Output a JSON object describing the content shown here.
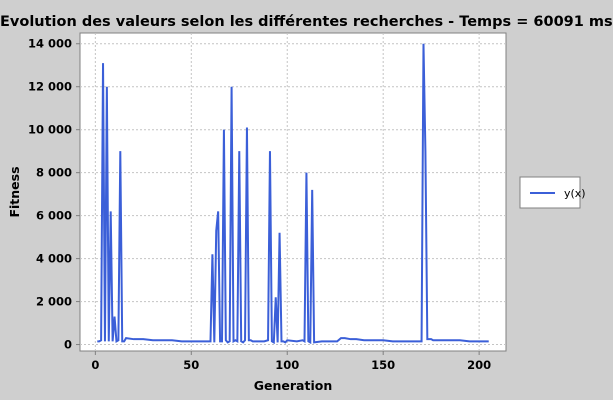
{
  "chart_data": {
    "type": "line",
    "title": "Evolution des valeurs selon les différentes recherches - Temps = 60091 ms",
    "xlabel": "Generation",
    "ylabel": "Fitness",
    "xlim": [
      -8,
      214
    ],
    "ylim": [
      -300,
      14500
    ],
    "xticks": [
      0,
      50,
      100,
      150,
      200
    ],
    "xtick_labels": [
      "0",
      "50",
      "100",
      "150",
      "200"
    ],
    "yticks": [
      0,
      2000,
      4000,
      6000,
      8000,
      10000,
      12000,
      14000
    ],
    "ytick_labels": [
      "0",
      "2 000",
      "4 000",
      "6 000",
      "8 000",
      "10 000",
      "12 000",
      "14 000"
    ],
    "grid": true,
    "legend_position": "right",
    "series": [
      {
        "name": "y(x)",
        "color": "#3b5fd8",
        "x": [
          1,
          2,
          3,
          4,
          5,
          6,
          7,
          8,
          9,
          10,
          11,
          12,
          13,
          14,
          15,
          16,
          20,
          25,
          30,
          35,
          40,
          45,
          50,
          55,
          58,
          60,
          61,
          62,
          63,
          64,
          65,
          66,
          67,
          68,
          69,
          70,
          71,
          72,
          73,
          74,
          75,
          76,
          77,
          78,
          79,
          80,
          81,
          82,
          85,
          88,
          90,
          91,
          92,
          93,
          94,
          95,
          96,
          97,
          98,
          99,
          100,
          105,
          108,
          109,
          110,
          111,
          112,
          113,
          114,
          118,
          122,
          126,
          128,
          130,
          133,
          136,
          140,
          145,
          150,
          155,
          160,
          165,
          168,
          170,
          171,
          172,
          173,
          174,
          175,
          176,
          180,
          185,
          190,
          195,
          200,
          205
        ],
        "y": [
          150,
          150,
          200,
          13100,
          150,
          12000,
          150,
          6200,
          150,
          1300,
          150,
          200,
          9000,
          150,
          150,
          300,
          250,
          250,
          200,
          200,
          200,
          150,
          150,
          150,
          150,
          150,
          4200,
          100,
          5300,
          6200,
          150,
          150,
          10000,
          200,
          100,
          150,
          12000,
          150,
          200,
          150,
          9000,
          150,
          100,
          200,
          10100,
          200,
          200,
          150,
          150,
          150,
          200,
          9000,
          150,
          100,
          2200,
          100,
          5200,
          150,
          150,
          100,
          200,
          150,
          200,
          150,
          8000,
          150,
          100,
          7200,
          100,
          150,
          150,
          150,
          300,
          300,
          250,
          250,
          200,
          200,
          200,
          150,
          150,
          150,
          150,
          150,
          14000,
          9000,
          250,
          250,
          250,
          200,
          200,
          200,
          200,
          150,
          150,
          150
        ]
      }
    ]
  }
}
